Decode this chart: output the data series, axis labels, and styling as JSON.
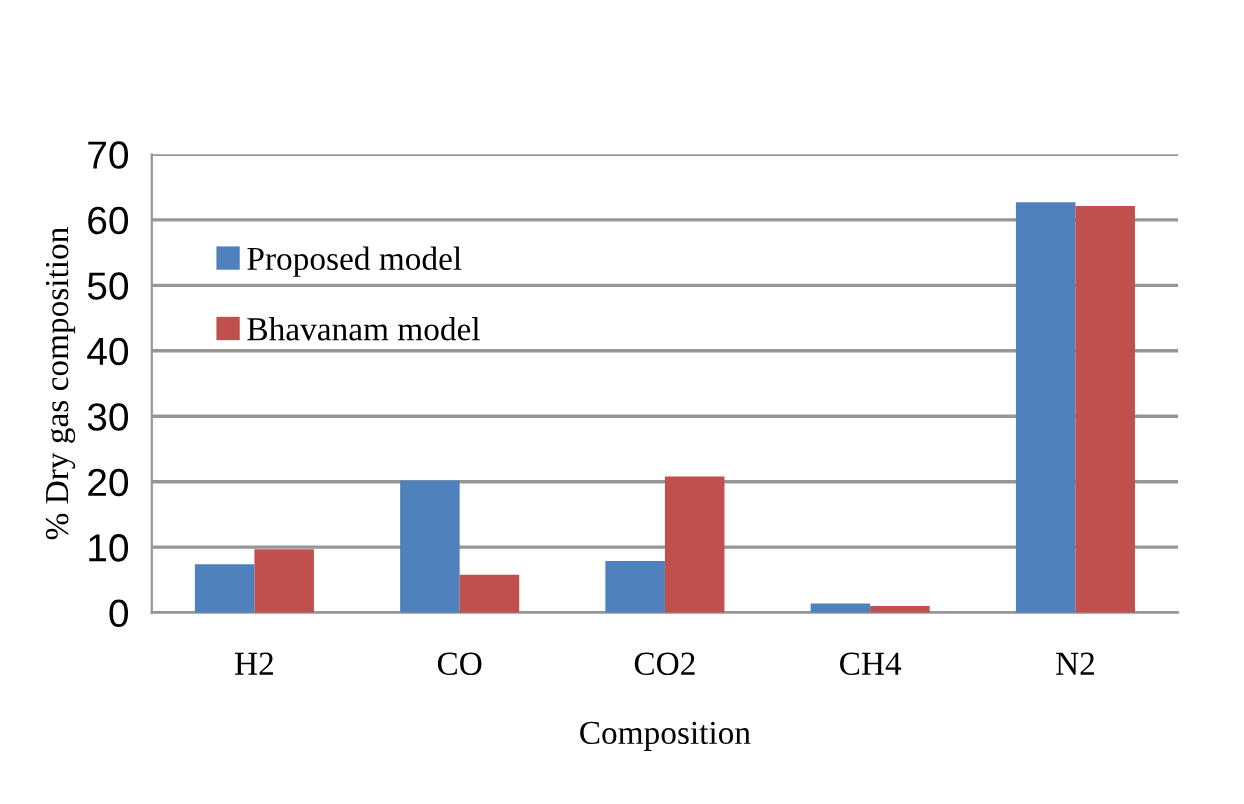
{
  "chart_data": {
    "type": "bar",
    "xlabel": "Composition",
    "ylabel": "% Dry gas composition",
    "categories": [
      "H2",
      "CO",
      "CO2",
      "CH4",
      "N2"
    ],
    "series": [
      {
        "name": "Proposed model",
        "color": "#4f81bd",
        "values": [
          7.4,
          20.2,
          7.9,
          1.4,
          62.7
        ]
      },
      {
        "name": "Bhavanam model",
        "color": "#c0504d",
        "values": [
          9.7,
          5.8,
          20.8,
          1.0,
          62.1
        ]
      }
    ],
    "ylim": [
      0,
      70
    ],
    "yticks": [
      0,
      10,
      20,
      30,
      40,
      50,
      60,
      70
    ],
    "grid": "y",
    "legend": "top left"
  }
}
